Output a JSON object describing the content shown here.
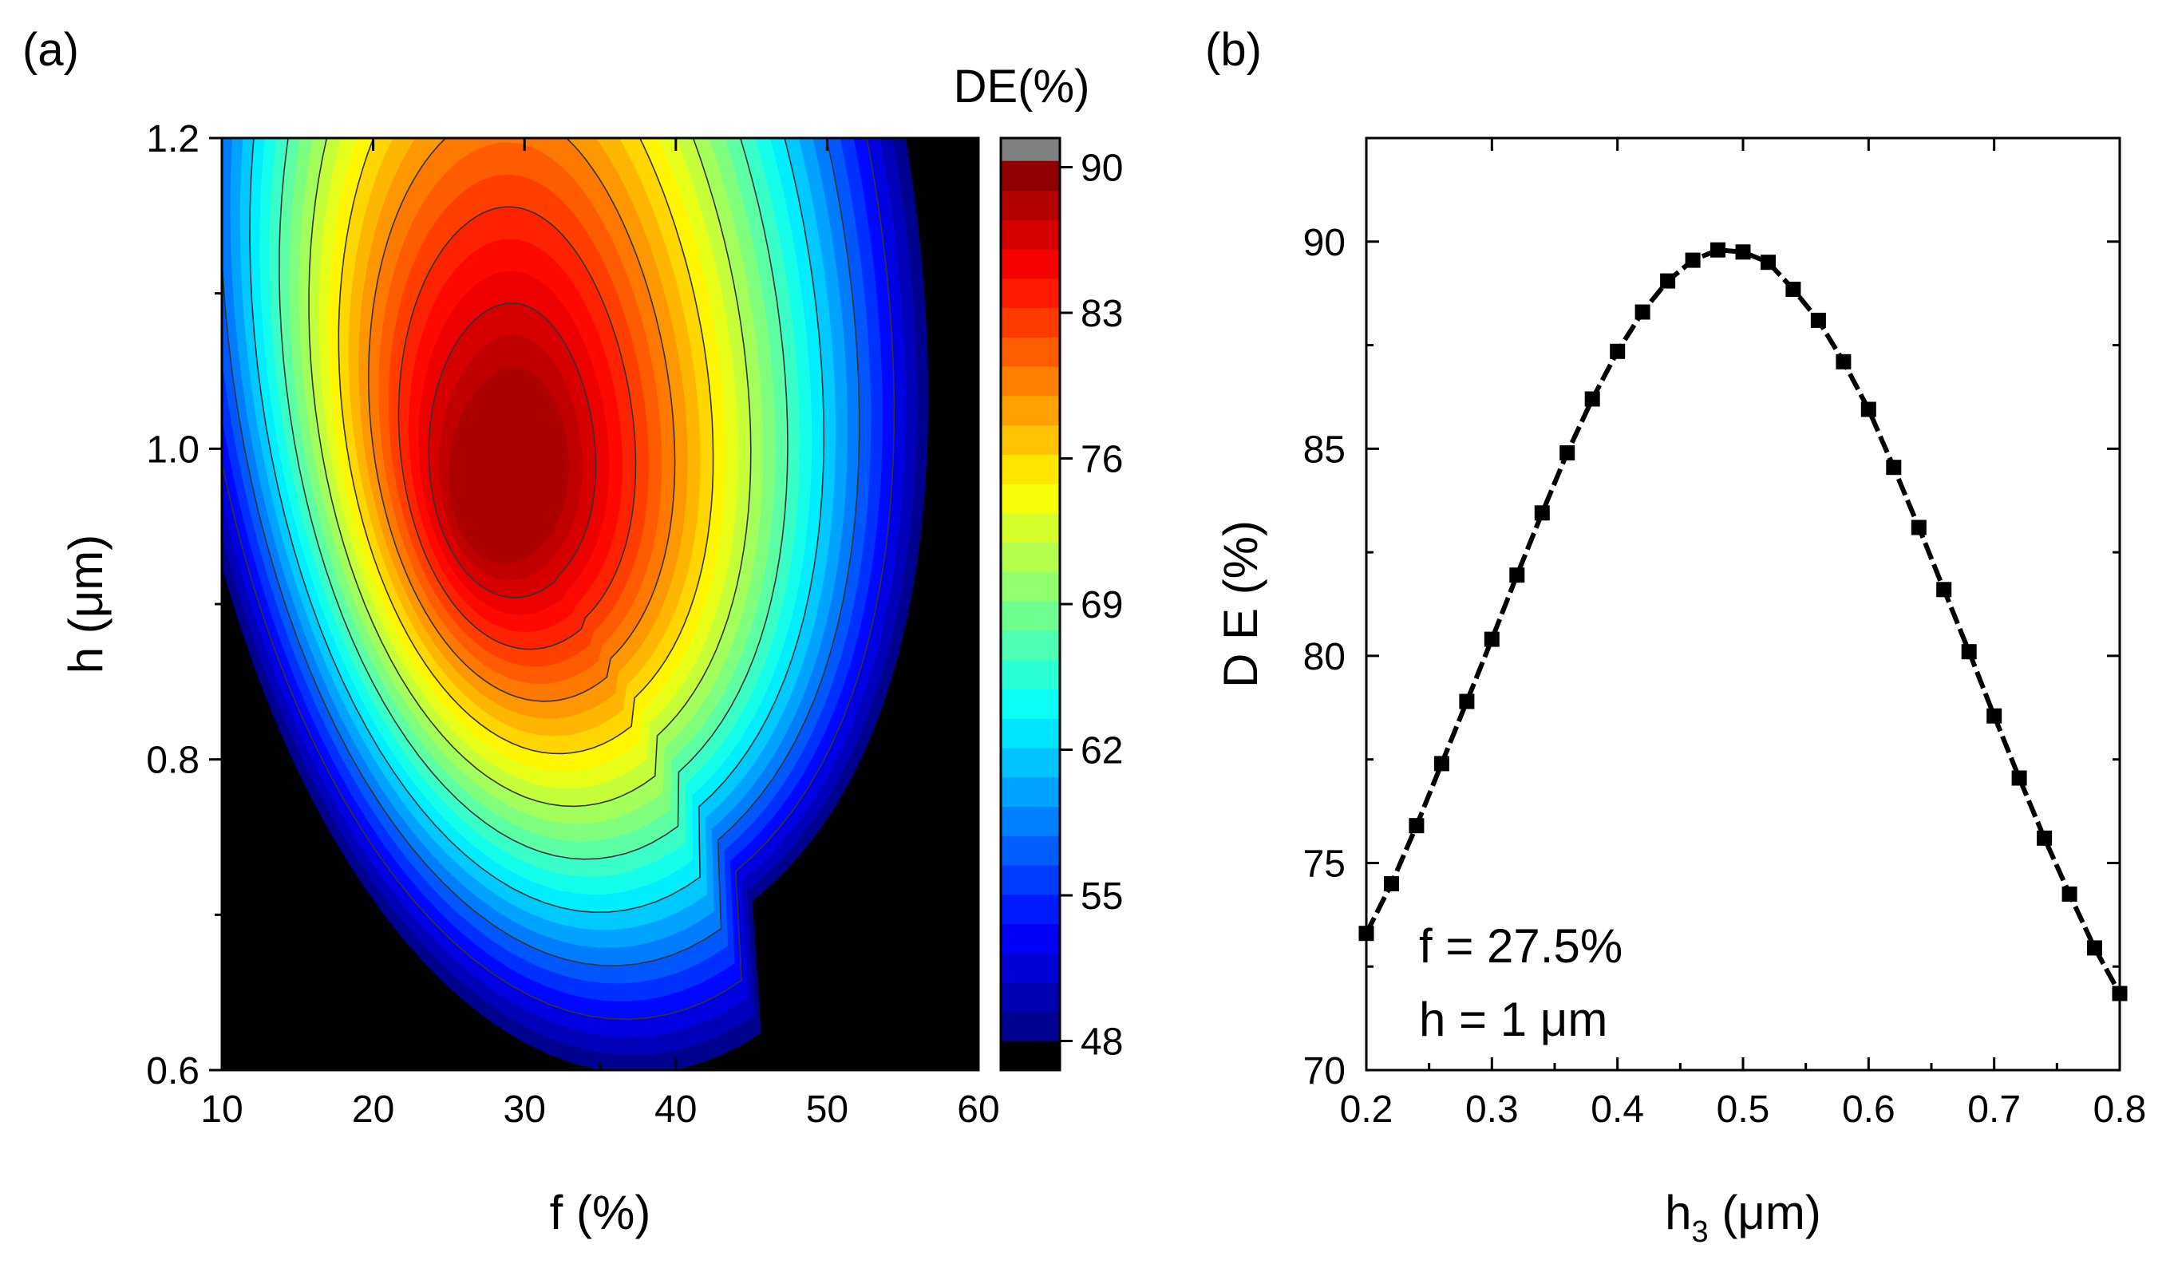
{
  "chart_data": [
    {
      "type": "heatmap",
      "panel_label": "(a)",
      "xlabel": "f (%)",
      "ylabel": "h (μm)",
      "xlim": [
        10,
        60
      ],
      "ylim": [
        0.6,
        1.2
      ],
      "xticks": [
        "10",
        "20",
        "30",
        "40",
        "50",
        "60"
      ],
      "xtick_values": [
        10,
        20,
        30,
        40,
        50,
        60
      ],
      "yticks": [
        "0.6",
        "0.8",
        "1.0",
        "1.2"
      ],
      "ytick_values": [
        0.6,
        0.8,
        1.0,
        1.2
      ],
      "colorbar": {
        "title": "DE(%)",
        "range": [
          46.6,
          91.4
        ],
        "tick_labels": [
          "48",
          "55",
          "62",
          "69",
          "76",
          "83",
          "90"
        ],
        "tick_values": [
          48,
          55,
          62,
          69,
          76,
          83,
          90
        ],
        "below_color": "#000000",
        "above_color": "#808080"
      },
      "peak": {
        "f": 29,
        "h": 0.985,
        "de": 90
      },
      "contour_lines": 9
    },
    {
      "type": "line",
      "panel_label": "(b)",
      "xlabel_main": "h",
      "xlabel_sub": "3",
      "xlabel_unit": " (μm)",
      "ylabel": "D E (%)",
      "xlim": [
        0.2,
        0.8
      ],
      "ylim": [
        70,
        92.5
      ],
      "xticks": [
        "0.2",
        "0.3",
        "0.4",
        "0.5",
        "0.6",
        "0.7",
        "0.8"
      ],
      "xtick_values": [
        0.2,
        0.3,
        0.4,
        0.5,
        0.6,
        0.7,
        0.8
      ],
      "yticks": [
        "70",
        "75",
        "80",
        "85",
        "90"
      ],
      "ytick_values": [
        70,
        75,
        80,
        85,
        90
      ],
      "annotations": [
        "f = 27.5%",
        "h = 1 μm"
      ],
      "series": [
        {
          "name": "DE",
          "marker": "square",
          "line_style": "dashed",
          "x": [
            0.2,
            0.22,
            0.24,
            0.26,
            0.28,
            0.3,
            0.32,
            0.34,
            0.36,
            0.38,
            0.4,
            0.42,
            0.44,
            0.46,
            0.48,
            0.5,
            0.52,
            0.54,
            0.56,
            0.58,
            0.6,
            0.62,
            0.64,
            0.66,
            0.68,
            0.7,
            0.72,
            0.74,
            0.76,
            0.78,
            0.8
          ],
          "y": [
            73.3,
            74.5,
            75.9,
            77.4,
            78.9,
            80.4,
            81.95,
            83.45,
            84.9,
            86.2,
            87.35,
            88.3,
            89.05,
            89.55,
            89.8,
            89.75,
            89.5,
            88.85,
            88.1,
            87.1,
            85.95,
            84.55,
            83.1,
            81.6,
            80.1,
            78.55,
            77.05,
            75.6,
            74.25,
            72.95,
            71.85
          ]
        }
      ]
    }
  ]
}
